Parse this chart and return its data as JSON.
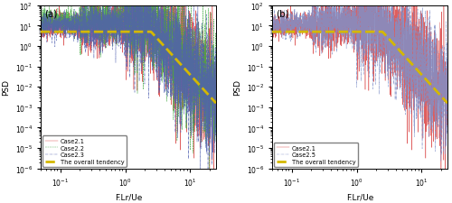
{
  "xlim": [
    0.05,
    25
  ],
  "ylim": [
    1e-06,
    100.0
  ],
  "xlabel": "F.Lr/Ue",
  "ylabel": "PSD",
  "panel_a_label": "(a)",
  "panel_b_label": "(b)",
  "case21_color": "#d94040",
  "case22_color": "#40a840",
  "case23_color": "#5060b0",
  "case25_color": "#8090c8",
  "tendency_color": "#d4b800",
  "n_points": 2000,
  "tend_flat_val": 5.0,
  "tend_break": 2.5,
  "tend_slope": 3.5,
  "tend_flat_start": 0.05,
  "legend_a": [
    "Case2.1",
    "Case2.2",
    "Case2.3",
    "The overall tendency"
  ],
  "legend_b": [
    "Case2.1",
    "Case2.5",
    "The overall tendency"
  ],
  "figsize": [
    5.0,
    2.26
  ],
  "dpi": 100
}
